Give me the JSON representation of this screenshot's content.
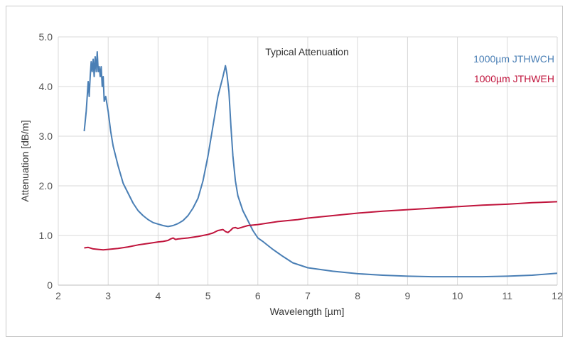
{
  "chart_data": {
    "type": "line",
    "title": "Typical Attenuation",
    "xlabel": "Wavelength [µm]",
    "ylabel": "Attenuation [dB/m]",
    "xlim": [
      2,
      12
    ],
    "ylim": [
      0,
      5
    ],
    "xticks": [
      "2",
      "3",
      "4",
      "5",
      "6",
      "7",
      "8",
      "9",
      "10",
      "11",
      "12"
    ],
    "yticks": [
      "0",
      "1.0",
      "2.0",
      "3.0",
      "4.0",
      "5.0"
    ],
    "grid": true,
    "legend_position": "top-right",
    "series": [
      {
        "name": "1000µm JTHWCH",
        "color": "#4a7fb5",
        "x": [
          2.52,
          2.56,
          2.6,
          2.62,
          2.64,
          2.66,
          2.68,
          2.7,
          2.72,
          2.74,
          2.76,
          2.78,
          2.8,
          2.82,
          2.84,
          2.86,
          2.88,
          2.9,
          2.92,
          2.95,
          3.0,
          3.05,
          3.1,
          3.2,
          3.3,
          3.4,
          3.5,
          3.6,
          3.7,
          3.8,
          3.9,
          4.0,
          4.1,
          4.2,
          4.3,
          4.4,
          4.5,
          4.6,
          4.7,
          4.8,
          4.9,
          5.0,
          5.1,
          5.2,
          5.25,
          5.3,
          5.35,
          5.38,
          5.42,
          5.46,
          5.5,
          5.55,
          5.6,
          5.7,
          5.8,
          5.9,
          6.0,
          6.1,
          6.2,
          6.3,
          6.4,
          6.5,
          6.7,
          7.0,
          7.5,
          8.0,
          8.5,
          9.0,
          9.5,
          10.0,
          10.5,
          11.0,
          11.5,
          12.0
        ],
        "y": [
          3.1,
          3.5,
          4.1,
          3.8,
          4.2,
          4.5,
          4.3,
          4.55,
          4.2,
          4.6,
          4.3,
          4.7,
          4.3,
          4.4,
          4.2,
          4.4,
          4.0,
          4.2,
          3.7,
          3.8,
          3.5,
          3.1,
          2.8,
          2.4,
          2.05,
          1.85,
          1.65,
          1.5,
          1.4,
          1.32,
          1.26,
          1.23,
          1.2,
          1.18,
          1.2,
          1.24,
          1.3,
          1.4,
          1.55,
          1.75,
          2.1,
          2.6,
          3.2,
          3.8,
          4.0,
          4.2,
          4.42,
          4.25,
          3.9,
          3.2,
          2.6,
          2.1,
          1.8,
          1.5,
          1.3,
          1.1,
          0.95,
          0.88,
          0.8,
          0.72,
          0.65,
          0.58,
          0.45,
          0.35,
          0.28,
          0.23,
          0.2,
          0.18,
          0.17,
          0.17,
          0.17,
          0.18,
          0.2,
          0.24
        ]
      },
      {
        "name": "1000µm JTHWEH",
        "color": "#c0143c",
        "x": [
          2.52,
          2.6,
          2.7,
          2.8,
          2.9,
          3.0,
          3.2,
          3.4,
          3.6,
          3.8,
          4.0,
          4.1,
          4.2,
          4.25,
          4.3,
          4.35,
          4.4,
          4.6,
          4.8,
          5.0,
          5.1,
          5.2,
          5.3,
          5.35,
          5.4,
          5.45,
          5.5,
          5.55,
          5.6,
          5.7,
          5.8,
          6.0,
          6.2,
          6.4,
          6.6,
          6.8,
          7.0,
          7.5,
          8.0,
          8.5,
          9.0,
          9.5,
          10.0,
          10.5,
          11.0,
          11.5,
          12.0
        ],
        "y": [
          0.75,
          0.76,
          0.73,
          0.72,
          0.71,
          0.72,
          0.74,
          0.77,
          0.81,
          0.84,
          0.87,
          0.88,
          0.9,
          0.93,
          0.95,
          0.92,
          0.93,
          0.95,
          0.98,
          1.02,
          1.05,
          1.1,
          1.12,
          1.08,
          1.06,
          1.1,
          1.15,
          1.16,
          1.14,
          1.17,
          1.2,
          1.22,
          1.25,
          1.28,
          1.3,
          1.32,
          1.35,
          1.4,
          1.45,
          1.49,
          1.52,
          1.55,
          1.58,
          1.61,
          1.63,
          1.66,
          1.68
        ]
      }
    ]
  }
}
